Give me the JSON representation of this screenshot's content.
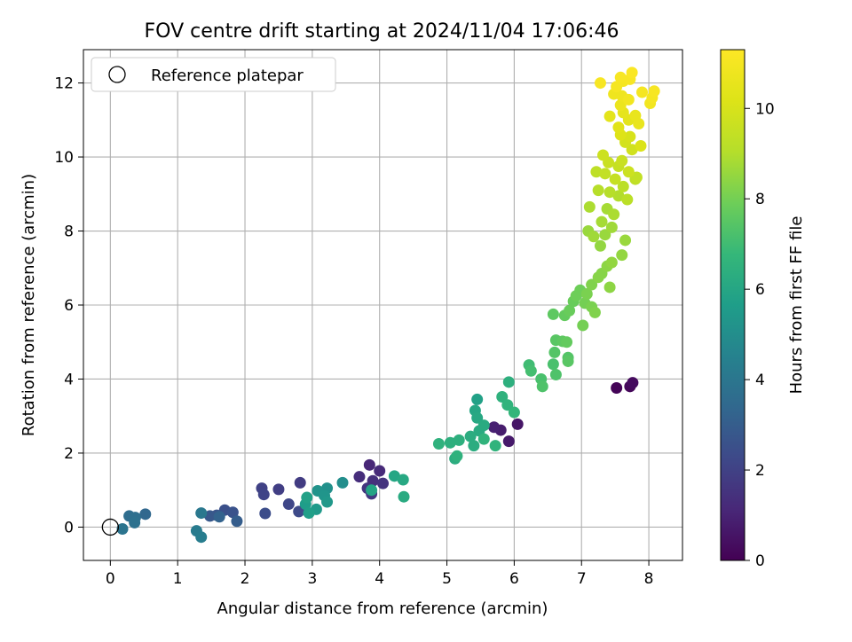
{
  "chart_data": {
    "type": "scatter",
    "title": "FOV centre drift starting at 2024/11/04 17:06:46",
    "xlabel": "Angular distance from reference (arcmin)",
    "ylabel": "Rotation from reference (arcmin)",
    "xlim": [
      -0.4,
      8.5
    ],
    "ylim": [
      -0.9,
      12.9
    ],
    "xticks": [
      0,
      1,
      2,
      3,
      4,
      5,
      6,
      7,
      8
    ],
    "yticks": [
      0,
      2,
      4,
      6,
      8,
      10,
      12
    ],
    "grid": true,
    "legend": {
      "placement": "top-left",
      "entries": [
        "Reference platepar"
      ]
    },
    "reference_point": {
      "x": 0,
      "y": 0
    },
    "colorbar": {
      "label": "Hours from first FF file",
      "range": [
        0,
        11.3
      ],
      "ticks": [
        0,
        2,
        4,
        6,
        8,
        10
      ],
      "colormap": "viridis"
    },
    "points": [
      {
        "x": 7.52,
        "y": 3.76,
        "c": 0.1
      },
      {
        "x": 7.72,
        "y": 3.8,
        "c": 0.2
      },
      {
        "x": 7.76,
        "y": 3.9,
        "c": 0.3
      },
      {
        "x": 6.05,
        "y": 2.78,
        "c": 0.6
      },
      {
        "x": 5.92,
        "y": 2.32,
        "c": 0.7
      },
      {
        "x": 5.8,
        "y": 2.62,
        "c": 0.8
      },
      {
        "x": 5.7,
        "y": 2.7,
        "c": 0.9
      },
      {
        "x": 3.85,
        "y": 1.68,
        "c": 1.1
      },
      {
        "x": 4.0,
        "y": 1.52,
        "c": 1.2
      },
      {
        "x": 3.7,
        "y": 1.36,
        "c": 1.3
      },
      {
        "x": 3.9,
        "y": 1.25,
        "c": 1.4
      },
      {
        "x": 4.05,
        "y": 1.18,
        "c": 1.5
      },
      {
        "x": 3.82,
        "y": 1.05,
        "c": 1.6
      },
      {
        "x": 3.88,
        "y": 0.9,
        "c": 1.7
      },
      {
        "x": 2.82,
        "y": 1.2,
        "c": 1.8
      },
      {
        "x": 2.5,
        "y": 1.02,
        "c": 1.9
      },
      {
        "x": 2.25,
        "y": 1.05,
        "c": 2.0
      },
      {
        "x": 2.28,
        "y": 0.88,
        "c": 2.1
      },
      {
        "x": 2.65,
        "y": 0.62,
        "c": 2.2
      },
      {
        "x": 2.8,
        "y": 0.42,
        "c": 2.3
      },
      {
        "x": 2.3,
        "y": 0.37,
        "c": 2.4
      },
      {
        "x": 1.7,
        "y": 0.46,
        "c": 2.5
      },
      {
        "x": 1.82,
        "y": 0.4,
        "c": 2.6
      },
      {
        "x": 1.58,
        "y": 0.32,
        "c": 2.7
      },
      {
        "x": 1.48,
        "y": 0.3,
        "c": 2.8
      },
      {
        "x": 1.88,
        "y": 0.16,
        "c": 3.0
      },
      {
        "x": 1.62,
        "y": 0.28,
        "c": 3.2
      },
      {
        "x": 0.52,
        "y": 0.35,
        "c": 3.4
      },
      {
        "x": 0.28,
        "y": 0.3,
        "c": 3.6
      },
      {
        "x": 0.37,
        "y": 0.26,
        "c": 3.7
      },
      {
        "x": 0.36,
        "y": 0.12,
        "c": 3.8
      },
      {
        "x": 0.18,
        "y": -0.05,
        "c": 3.9
      },
      {
        "x": 1.35,
        "y": 0.38,
        "c": 4.1
      },
      {
        "x": 1.28,
        "y": -0.1,
        "c": 4.2
      },
      {
        "x": 1.35,
        "y": -0.27,
        "c": 4.3
      },
      {
        "x": 3.45,
        "y": 1.2,
        "c": 5.0
      },
      {
        "x": 3.22,
        "y": 1.05,
        "c": 5.1
      },
      {
        "x": 3.08,
        "y": 0.98,
        "c": 5.2
      },
      {
        "x": 3.18,
        "y": 0.85,
        "c": 5.3
      },
      {
        "x": 3.22,
        "y": 0.68,
        "c": 5.4
      },
      {
        "x": 3.06,
        "y": 0.48,
        "c": 5.5
      },
      {
        "x": 2.9,
        "y": 0.62,
        "c": 5.6
      },
      {
        "x": 2.95,
        "y": 0.38,
        "c": 5.7
      },
      {
        "x": 2.92,
        "y": 0.8,
        "c": 5.8
      },
      {
        "x": 3.88,
        "y": 1.0,
        "c": 5.9
      },
      {
        "x": 4.22,
        "y": 1.38,
        "c": 6.0
      },
      {
        "x": 4.35,
        "y": 1.28,
        "c": 6.1
      },
      {
        "x": 4.36,
        "y": 0.82,
        "c": 6.2
      },
      {
        "x": 5.45,
        "y": 3.45,
        "c": 5.8
      },
      {
        "x": 5.42,
        "y": 3.15,
        "c": 6.0
      },
      {
        "x": 5.45,
        "y": 2.95,
        "c": 6.1
      },
      {
        "x": 5.55,
        "y": 2.75,
        "c": 6.2
      },
      {
        "x": 5.48,
        "y": 2.6,
        "c": 6.2
      },
      {
        "x": 5.35,
        "y": 2.45,
        "c": 6.3
      },
      {
        "x": 5.18,
        "y": 2.35,
        "c": 6.4
      },
      {
        "x": 5.05,
        "y": 2.28,
        "c": 6.4
      },
      {
        "x": 4.88,
        "y": 2.25,
        "c": 6.5
      },
      {
        "x": 5.12,
        "y": 1.85,
        "c": 6.3
      },
      {
        "x": 5.15,
        "y": 1.92,
        "c": 6.5
      },
      {
        "x": 5.4,
        "y": 2.2,
        "c": 6.3
      },
      {
        "x": 5.55,
        "y": 2.38,
        "c": 6.6
      },
      {
        "x": 5.72,
        "y": 2.2,
        "c": 6.6
      },
      {
        "x": 5.92,
        "y": 3.92,
        "c": 6.4
      },
      {
        "x": 5.82,
        "y": 3.52,
        "c": 6.5
      },
      {
        "x": 5.9,
        "y": 3.3,
        "c": 6.6
      },
      {
        "x": 6.0,
        "y": 3.1,
        "c": 6.7
      },
      {
        "x": 6.22,
        "y": 4.38,
        "c": 7.0
      },
      {
        "x": 6.25,
        "y": 4.22,
        "c": 7.1
      },
      {
        "x": 6.4,
        "y": 4.0,
        "c": 7.2
      },
      {
        "x": 6.42,
        "y": 3.8,
        "c": 7.3
      },
      {
        "x": 6.58,
        "y": 4.4,
        "c": 7.2
      },
      {
        "x": 6.62,
        "y": 4.12,
        "c": 7.3
      },
      {
        "x": 6.8,
        "y": 4.58,
        "c": 7.4
      },
      {
        "x": 6.8,
        "y": 4.48,
        "c": 7.5
      },
      {
        "x": 6.6,
        "y": 4.72,
        "c": 7.4
      },
      {
        "x": 6.62,
        "y": 5.05,
        "c": 7.5
      },
      {
        "x": 6.72,
        "y": 5.02,
        "c": 7.6
      },
      {
        "x": 6.78,
        "y": 5.0,
        "c": 7.7
      },
      {
        "x": 6.58,
        "y": 5.75,
        "c": 7.6
      },
      {
        "x": 6.75,
        "y": 5.72,
        "c": 7.7
      },
      {
        "x": 6.82,
        "y": 5.85,
        "c": 7.8
      },
      {
        "x": 6.88,
        "y": 6.1,
        "c": 7.8
      },
      {
        "x": 6.92,
        "y": 6.25,
        "c": 7.9
      },
      {
        "x": 6.98,
        "y": 6.4,
        "c": 7.9
      },
      {
        "x": 7.05,
        "y": 6.05,
        "c": 8.0
      },
      {
        "x": 7.08,
        "y": 6.3,
        "c": 8.1
      },
      {
        "x": 7.15,
        "y": 5.95,
        "c": 8.1
      },
      {
        "x": 7.2,
        "y": 5.8,
        "c": 8.2
      },
      {
        "x": 7.02,
        "y": 5.45,
        "c": 8.0
      },
      {
        "x": 7.15,
        "y": 6.55,
        "c": 8.2
      },
      {
        "x": 7.25,
        "y": 6.75,
        "c": 8.3
      },
      {
        "x": 7.3,
        "y": 6.85,
        "c": 8.3
      },
      {
        "x": 7.42,
        "y": 6.48,
        "c": 8.4
      },
      {
        "x": 7.38,
        "y": 7.05,
        "c": 8.4
      },
      {
        "x": 7.45,
        "y": 7.15,
        "c": 8.5
      },
      {
        "x": 7.6,
        "y": 7.35,
        "c": 8.5
      },
      {
        "x": 7.65,
        "y": 7.75,
        "c": 8.6
      },
      {
        "x": 7.28,
        "y": 7.6,
        "c": 8.5
      },
      {
        "x": 7.35,
        "y": 7.9,
        "c": 8.6
      },
      {
        "x": 7.1,
        "y": 8.0,
        "c": 8.6
      },
      {
        "x": 7.18,
        "y": 7.85,
        "c": 8.7
      },
      {
        "x": 7.45,
        "y": 8.1,
        "c": 8.7
      },
      {
        "x": 7.3,
        "y": 8.25,
        "c": 8.8
      },
      {
        "x": 7.38,
        "y": 8.6,
        "c": 8.8
      },
      {
        "x": 7.12,
        "y": 8.65,
        "c": 8.9
      },
      {
        "x": 7.48,
        "y": 8.45,
        "c": 8.9
      },
      {
        "x": 7.55,
        "y": 8.95,
        "c": 9.0
      },
      {
        "x": 7.42,
        "y": 9.05,
        "c": 9.1
      },
      {
        "x": 7.25,
        "y": 9.1,
        "c": 9.1
      },
      {
        "x": 7.68,
        "y": 8.85,
        "c": 9.2
      },
      {
        "x": 7.62,
        "y": 9.2,
        "c": 9.2
      },
      {
        "x": 7.8,
        "y": 9.4,
        "c": 9.3
      },
      {
        "x": 7.82,
        "y": 9.45,
        "c": 9.4
      },
      {
        "x": 7.22,
        "y": 9.6,
        "c": 9.3
      },
      {
        "x": 7.35,
        "y": 9.55,
        "c": 9.4
      },
      {
        "x": 7.5,
        "y": 9.4,
        "c": 9.5
      },
      {
        "x": 7.55,
        "y": 9.75,
        "c": 9.5
      },
      {
        "x": 7.4,
        "y": 9.85,
        "c": 9.6
      },
      {
        "x": 7.6,
        "y": 9.9,
        "c": 9.6
      },
      {
        "x": 7.32,
        "y": 10.05,
        "c": 9.7
      },
      {
        "x": 7.7,
        "y": 9.6,
        "c": 9.7
      },
      {
        "x": 7.75,
        "y": 10.2,
        "c": 9.8
      },
      {
        "x": 7.65,
        "y": 10.4,
        "c": 9.9
      },
      {
        "x": 7.72,
        "y": 10.55,
        "c": 10.0
      },
      {
        "x": 7.88,
        "y": 10.3,
        "c": 10.1
      },
      {
        "x": 7.58,
        "y": 10.6,
        "c": 10.2
      },
      {
        "x": 7.55,
        "y": 10.8,
        "c": 10.3
      },
      {
        "x": 7.7,
        "y": 11.0,
        "c": 10.4
      },
      {
        "x": 7.42,
        "y": 11.1,
        "c": 10.4
      },
      {
        "x": 7.62,
        "y": 11.2,
        "c": 10.5
      },
      {
        "x": 7.8,
        "y": 11.12,
        "c": 10.6
      },
      {
        "x": 7.85,
        "y": 10.9,
        "c": 10.6
      },
      {
        "x": 7.58,
        "y": 11.4,
        "c": 10.7
      },
      {
        "x": 7.48,
        "y": 11.7,
        "c": 10.8
      },
      {
        "x": 7.6,
        "y": 11.65,
        "c": 10.8
      },
      {
        "x": 7.7,
        "y": 11.55,
        "c": 10.9
      },
      {
        "x": 7.52,
        "y": 11.9,
        "c": 11.0
      },
      {
        "x": 7.62,
        "y": 12.05,
        "c": 11.0
      },
      {
        "x": 7.72,
        "y": 12.1,
        "c": 11.1
      },
      {
        "x": 7.58,
        "y": 12.15,
        "c": 11.1
      },
      {
        "x": 7.28,
        "y": 12.0,
        "c": 11.1
      },
      {
        "x": 7.75,
        "y": 12.28,
        "c": 11.2
      },
      {
        "x": 7.9,
        "y": 11.75,
        "c": 11.0
      },
      {
        "x": 8.02,
        "y": 11.45,
        "c": 10.9
      },
      {
        "x": 8.05,
        "y": 11.6,
        "c": 11.0
      },
      {
        "x": 8.08,
        "y": 11.78,
        "c": 11.1
      }
    ]
  }
}
